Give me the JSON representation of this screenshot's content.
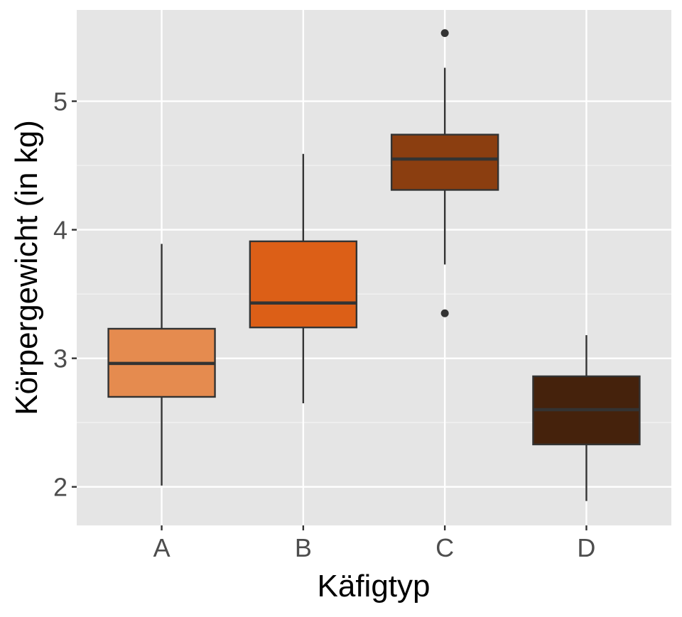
{
  "chart_data": {
    "type": "boxplot",
    "title": "",
    "xlabel": "Käfigtyp",
    "ylabel": "Körpergewicht (in kg)",
    "categories": [
      "A",
      "B",
      "C",
      "D"
    ],
    "ylim": [
      1.7,
      5.71
    ],
    "yticks": [
      2,
      3,
      4,
      5
    ],
    "ytick_labels": [
      "2",
      "3",
      "4",
      "5"
    ],
    "grid": true,
    "legend": "none",
    "boxes": [
      {
        "category": "A",
        "whisker_low": 2.01,
        "q1": 2.7,
        "median": 2.96,
        "q3": 3.23,
        "whisker_high": 3.89,
        "outliers": [],
        "color": "#E58B4F"
      },
      {
        "category": "B",
        "whisker_low": 2.65,
        "q1": 3.24,
        "median": 3.43,
        "q3": 3.91,
        "whisker_high": 4.59,
        "outliers": [],
        "color": "#DC5F17"
      },
      {
        "category": "C",
        "whisker_low": 3.73,
        "q1": 4.31,
        "median": 4.55,
        "q3": 4.74,
        "whisker_high": 5.26,
        "outliers": [
          5.53,
          3.35
        ],
        "color": "#8B3E10"
      },
      {
        "category": "D",
        "whisker_low": 1.89,
        "q1": 2.33,
        "median": 2.6,
        "q3": 2.86,
        "whisker_high": 3.18,
        "outliers": [],
        "color": "#45220C"
      }
    ]
  }
}
